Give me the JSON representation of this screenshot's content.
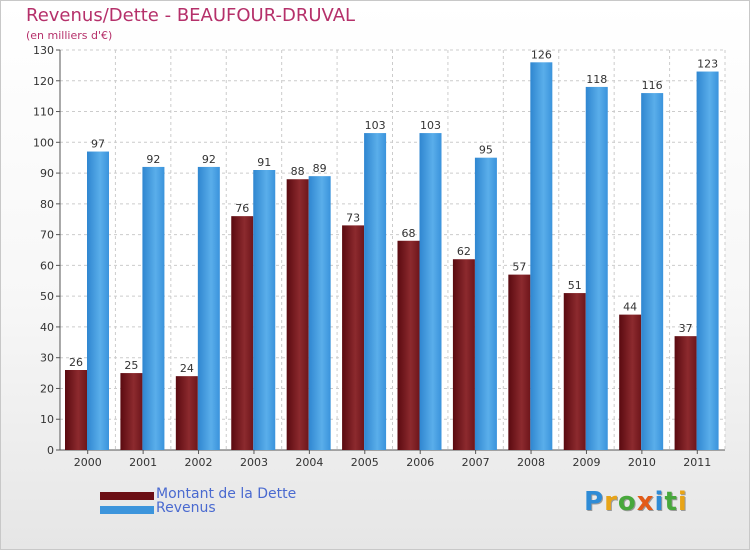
{
  "title": "Revenus/Dette - BEAUFOUR-DRUVAL",
  "subtitle": "(en milliers d'€)",
  "colors": {
    "debt": "#7a1e22",
    "revenue": "#3d95dc",
    "axis_text": "#333333",
    "grid": "#cccccc",
    "title": "#b5306a"
  },
  "legend": [
    {
      "label": "Montant de la Dette",
      "color": "#6b0f14"
    },
    {
      "label": "Revenus",
      "color": "#3d95dc"
    }
  ],
  "logo": {
    "text": "Proxiti",
    "letter_colors": [
      "#2e8bd6",
      "#e8a417",
      "#48a83c",
      "#e25b18",
      "#2e8bd6",
      "#48a83c",
      "#e8a417"
    ]
  },
  "chart_data": {
    "type": "bar",
    "title": "Revenus/Dette - BEAUFOUR-DRUVAL",
    "subtitle": "(en milliers d'€)",
    "categories": [
      "2000",
      "2001",
      "2002",
      "2003",
      "2004",
      "2005",
      "2006",
      "2007",
      "2008",
      "2009",
      "2010",
      "2011"
    ],
    "series": [
      {
        "name": "Montant de la Dette",
        "values": [
          26,
          25,
          24,
          76,
          88,
          73,
          68,
          62,
          57,
          51,
          44,
          37
        ]
      },
      {
        "name": "Revenus",
        "values": [
          97,
          92,
          92,
          91,
          89,
          103,
          103,
          95,
          126,
          118,
          116,
          123
        ]
      }
    ],
    "ylim": [
      0,
      130
    ],
    "yticks": [
      0,
      10,
      20,
      30,
      40,
      50,
      60,
      70,
      80,
      90,
      100,
      110,
      120,
      130
    ],
    "grid": true,
    "legend_position": "bottom-left"
  }
}
